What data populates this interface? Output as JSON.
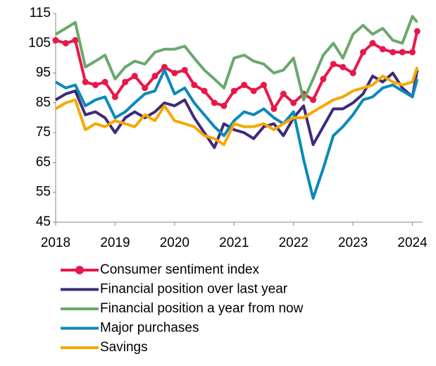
{
  "chart_data": {
    "type": "line",
    "x": [
      2018.0,
      2018.17,
      2018.33,
      2018.5,
      2018.67,
      2018.83,
      2019.0,
      2019.17,
      2019.33,
      2019.5,
      2019.67,
      2019.83,
      2020.0,
      2020.17,
      2020.33,
      2020.5,
      2020.67,
      2020.83,
      2021.0,
      2021.17,
      2021.33,
      2021.5,
      2021.67,
      2021.83,
      2022.0,
      2022.17,
      2022.33,
      2022.5,
      2022.67,
      2022.83,
      2023.0,
      2023.17,
      2023.33,
      2023.5,
      2023.67,
      2023.83,
      2024.0,
      2024.08
    ],
    "series": [
      {
        "name": "Consumer sentiment index",
        "color": "#e8174a",
        "markers": true,
        "values": [
          106,
          105,
          106,
          92,
          91,
          92,
          87,
          92,
          94,
          90,
          94,
          97,
          95,
          96,
          91,
          89,
          85,
          84,
          89,
          91,
          89,
          91,
          83,
          88,
          85,
          88,
          86,
          93,
          98,
          97,
          95,
          102,
          105,
          103,
          102,
          102,
          102,
          109
        ]
      },
      {
        "name": "Financial position over last year",
        "color": "#3f2a7a",
        "markers": false,
        "values": [
          86,
          88,
          89,
          81,
          82,
          80,
          75,
          80,
          82,
          80,
          82,
          85,
          84,
          86,
          80,
          75,
          70,
          78,
          76,
          75,
          73,
          77,
          78,
          74,
          80,
          84,
          71,
          77,
          83,
          83,
          85,
          88,
          94,
          92,
          95,
          90,
          87,
          96
        ]
      },
      {
        "name": "Financial position a year from now",
        "color": "#6aa86b",
        "markers": false,
        "values": [
          108,
          110,
          112,
          97,
          99,
          101,
          93,
          97,
          99,
          98,
          102,
          103,
          103,
          104,
          100,
          96,
          93,
          90,
          100,
          101,
          99,
          98,
          95,
          96,
          100,
          86,
          93,
          101,
          105,
          100,
          108,
          111,
          108,
          110,
          106,
          105,
          114,
          112
        ]
      },
      {
        "name": "Major purchases",
        "color": "#0a8ab8",
        "markers": false,
        "values": [
          92,
          90,
          91,
          84,
          86,
          87,
          80,
          82,
          85,
          88,
          89,
          96,
          88,
          90,
          85,
          81,
          77,
          74,
          79,
          82,
          81,
          83,
          80,
          78,
          82,
          66,
          53,
          63,
          74,
          77,
          81,
          86,
          87,
          90,
          91,
          89,
          87,
          93
        ]
      },
      {
        "name": "Savings",
        "color": "#f5a800",
        "markers": false,
        "values": [
          83,
          85,
          86,
          76,
          78,
          77,
          79,
          78,
          77,
          81,
          79,
          84,
          79,
          78,
          77,
          74,
          73,
          71,
          78,
          77,
          77,
          78,
          76,
          78,
          80,
          80,
          82,
          84,
          86,
          87,
          89,
          90,
          91,
          94,
          92,
          91,
          92,
          97
        ]
      }
    ],
    "xlim": [
      2018,
      2024.1
    ],
    "xticks": [
      2018,
      2019,
      2020,
      2021,
      2022,
      2023,
      2024
    ],
    "ylim": [
      45,
      115
    ],
    "yticks": [
      45,
      55,
      65,
      75,
      85,
      95,
      105,
      115
    ],
    "grid": false,
    "legend": "bottom"
  }
}
